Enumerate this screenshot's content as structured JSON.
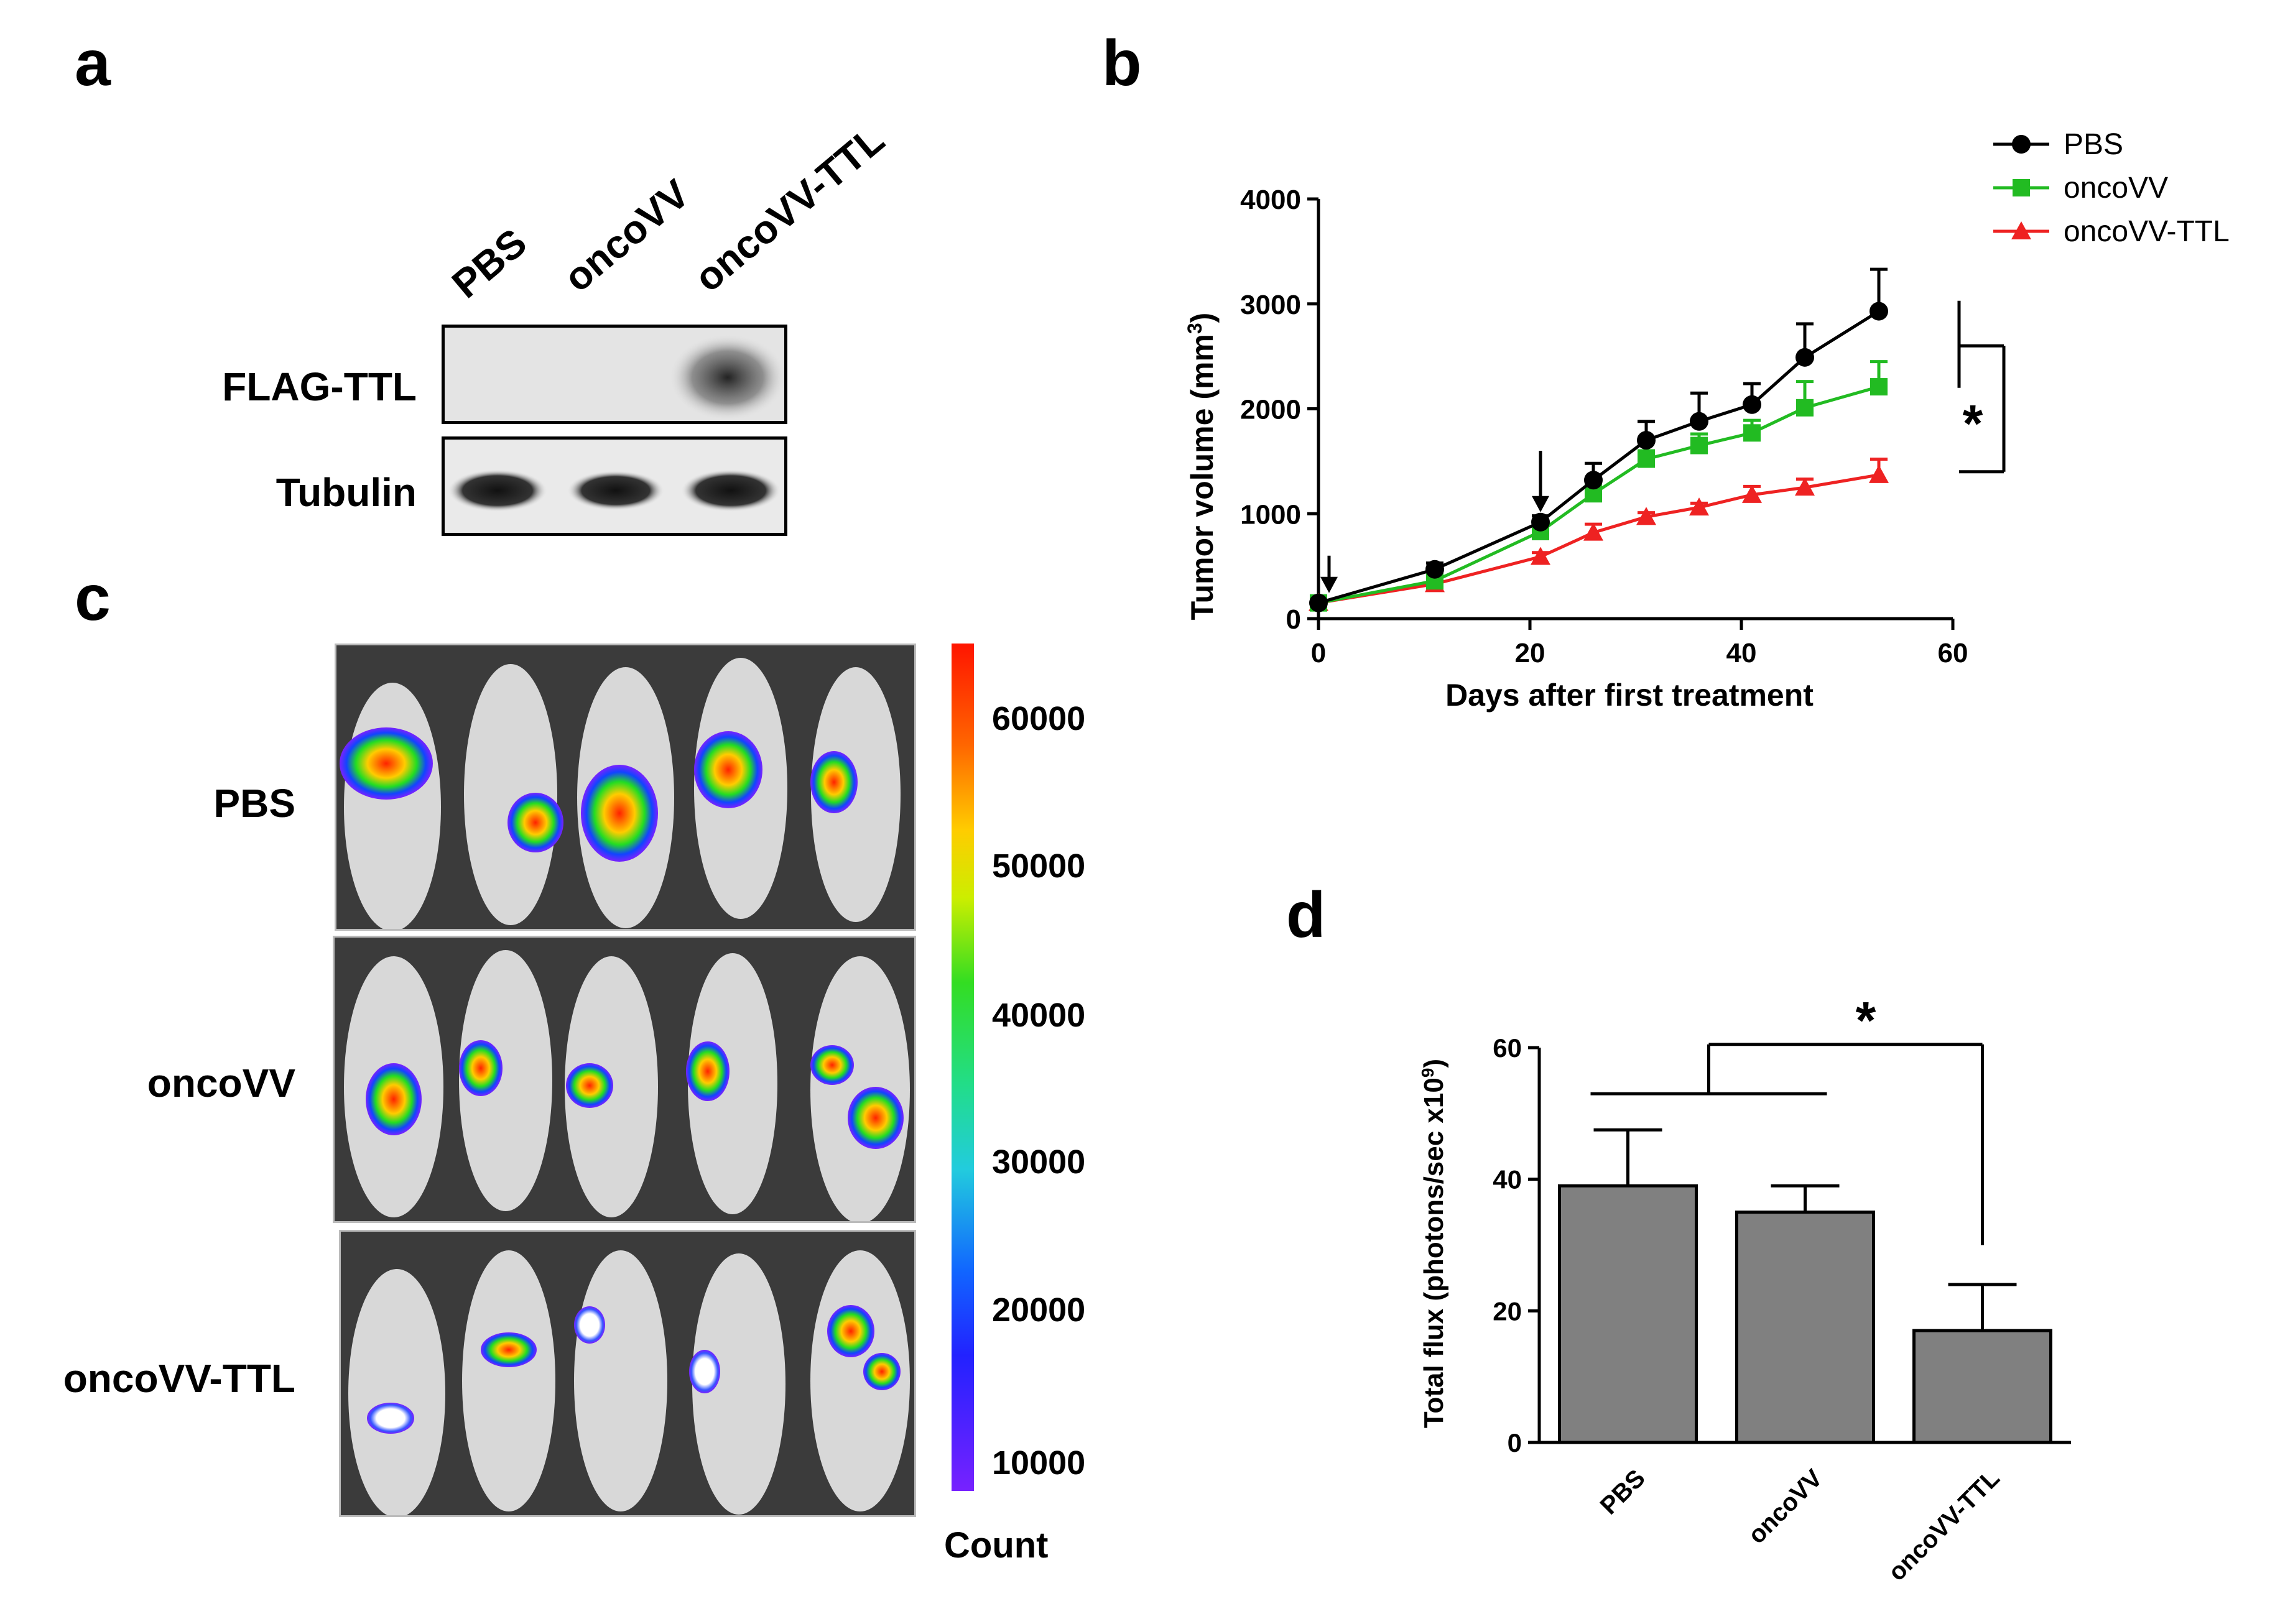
{
  "panels": {
    "a": "a",
    "b": "b",
    "c": "c",
    "d": "d"
  },
  "blot": {
    "lanes": [
      "PBS",
      "oncoVV",
      "oncoVV-TTL"
    ],
    "rows": [
      "FLAG-TTL",
      "Tubulin"
    ]
  },
  "imaging": {
    "groups": [
      "PBS",
      "oncoVV",
      "oncoVV-TTL"
    ],
    "colorbar": {
      "ticks": [
        "60000",
        "50000",
        "40000",
        "30000",
        "20000",
        "10000"
      ],
      "label": "Count"
    }
  },
  "colors": {
    "PBS": "#000000",
    "oncoVV": "#22bb22",
    "oncoVV-TTL": "#ee2222",
    "bar": "#808080"
  },
  "chart_data": [
    {
      "type": "line",
      "xlabel": "Days after first treatment",
      "ylabel": "Tumor volume (mm³)",
      "ylabel_main": "Tumor volume (mm",
      "ylabel_sup": "3",
      "ylabel_end": ")",
      "xlim": [
        0,
        60
      ],
      "ylim": [
        0,
        4000
      ],
      "xticks": [
        "0",
        "20",
        "40",
        "60"
      ],
      "yticks": [
        "0",
        "1000",
        "2000",
        "3000",
        "4000"
      ],
      "legend_position": "top-right",
      "treatment_arrows_at_days": [
        1,
        21
      ],
      "significance": "*",
      "series": [
        {
          "name": "PBS",
          "marker": "circle",
          "x": [
            0,
            11,
            21,
            26,
            31,
            36,
            41,
            46,
            53
          ],
          "y": [
            150,
            470,
            920,
            1320,
            1700,
            1880,
            2040,
            2490,
            2930
          ],
          "err": [
            0,
            60,
            60,
            160,
            180,
            270,
            200,
            320,
            400
          ]
        },
        {
          "name": "oncoVV",
          "marker": "square",
          "x": [
            0,
            11,
            21,
            26,
            31,
            36,
            41,
            46,
            53
          ],
          "y": [
            150,
            360,
            830,
            1190,
            1520,
            1650,
            1770,
            2010,
            2210
          ],
          "err": [
            0,
            50,
            60,
            100,
            80,
            110,
            120,
            250,
            240
          ]
        },
        {
          "name": "oncoVV-TTL",
          "marker": "triangle",
          "x": [
            0,
            11,
            21,
            26,
            31,
            36,
            41,
            46,
            53
          ],
          "y": [
            150,
            330,
            590,
            820,
            970,
            1060,
            1180,
            1250,
            1370
          ],
          "err": [
            0,
            30,
            40,
            80,
            40,
            40,
            80,
            80,
            150
          ]
        }
      ]
    },
    {
      "type": "bar",
      "categories": [
        "PBS",
        "oncoVV",
        "oncoVV-TTL"
      ],
      "values": [
        39,
        35,
        17
      ],
      "errors": [
        8.5,
        4,
        7
      ],
      "ylabel": "Total flux (photons/sec x10⁹)",
      "ylabel_main": "Total flux (photons/sec x10",
      "ylabel_sup": "9",
      "ylabel_end": ")",
      "ylim": [
        0,
        60
      ],
      "yticks": [
        "0",
        "20",
        "40",
        "60"
      ],
      "significance": "*"
    }
  ]
}
